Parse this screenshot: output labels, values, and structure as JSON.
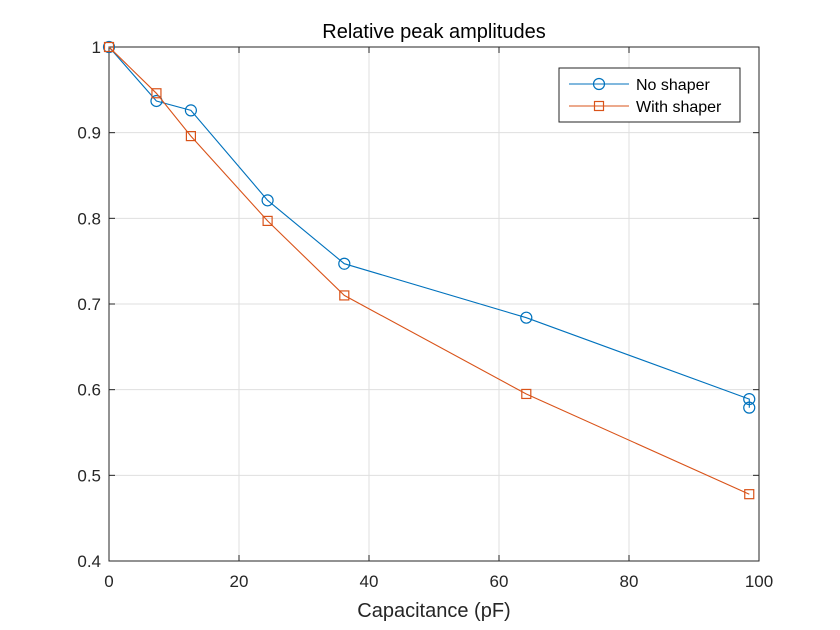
{
  "chart_data": {
    "type": "line",
    "title": "Relative peak amplitudes",
    "xlabel": "Capacitance (pF)",
    "ylabel": "",
    "xlim": [
      0,
      100
    ],
    "ylim": [
      0.4,
      1
    ],
    "xticks": [
      0,
      20,
      40,
      60,
      80,
      100
    ],
    "yticks": [
      0.4,
      0.5,
      0.6,
      0.7,
      0.8,
      0.9,
      1
    ],
    "xtick_labels": [
      "0",
      "20",
      "40",
      "60",
      "80",
      "100"
    ],
    "ytick_labels": [
      "0.4",
      "0.5",
      "0.6",
      "0.7",
      "0.8",
      "0.9",
      "1"
    ],
    "grid": true,
    "legend_position": "top-right",
    "series": [
      {
        "name": "No shaper",
        "marker": "circle",
        "color": "#0072BD",
        "x": [
          0,
          7.3,
          12.6,
          24.4,
          36.2,
          64.2,
          98.5,
          98.5
        ],
        "y": [
          1.0,
          0.937,
          0.926,
          0.821,
          0.747,
          0.684,
          0.589,
          0.579
        ]
      },
      {
        "name": "With shaper",
        "marker": "square",
        "color": "#D95319",
        "x": [
          0,
          7.3,
          12.6,
          24.4,
          36.2,
          64.2,
          98.5
        ],
        "y": [
          1.0,
          0.946,
          0.896,
          0.797,
          0.71,
          0.595,
          0.478
        ]
      }
    ]
  }
}
